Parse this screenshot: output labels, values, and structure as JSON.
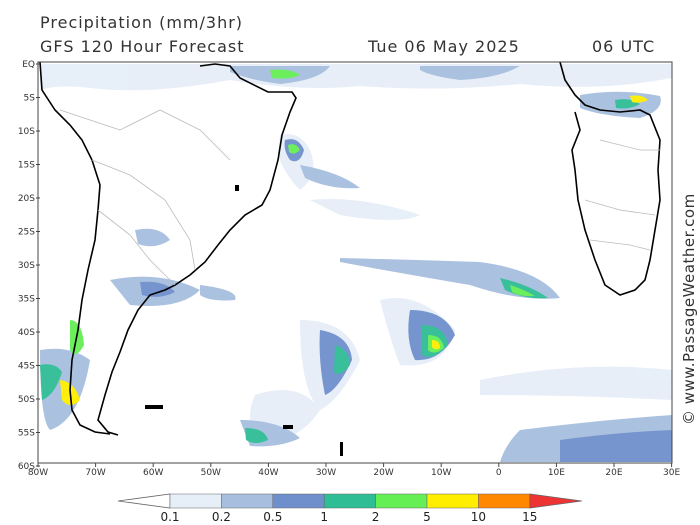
{
  "header": {
    "title": "Precipitation (mm/3hr)",
    "subtitle": "GFS 120 Hour Forecast",
    "date": "Tue 06 May 2025",
    "time": "06 UTC"
  },
  "map": {
    "lat_labels": [
      "EQ",
      "5S",
      "10S",
      "15S",
      "20S",
      "25S",
      "30S",
      "35S",
      "40S",
      "45S",
      "50S",
      "55S",
      "60S"
    ],
    "lon_labels": [
      "80W",
      "70W",
      "60W",
      "50W",
      "40W",
      "30W",
      "20W",
      "10W",
      "0",
      "10E",
      "20E",
      "30E"
    ]
  },
  "colorbar": {
    "labels": [
      "0.1",
      "0.2",
      "0.5",
      "1",
      "2",
      "5",
      "10",
      "15"
    ],
    "colors": [
      "#ffffff",
      "#e6eef8",
      "#a7bedf",
      "#6f8fcc",
      "#2fbd96",
      "#66ee55",
      "#ffee00",
      "#ff8800",
      "#ee3333"
    ]
  },
  "copyright": "© www.PassageWeather.com"
}
